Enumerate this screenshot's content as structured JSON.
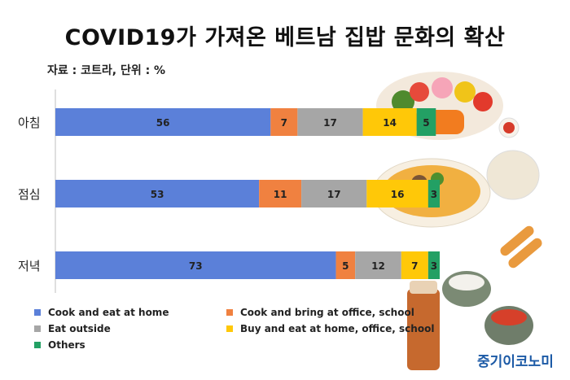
{
  "title": "COVID19가 가져온 베트남 집밥 문화의 확산",
  "source": "자료 : 코트라, 단위 : %",
  "logo": "중기이코노미",
  "chart_data": {
    "type": "bar",
    "stacked": true,
    "orientation": "horizontal",
    "categories": [
      "아침",
      "점심",
      "저녁"
    ],
    "series": [
      {
        "name": "Cook and eat at home",
        "color": "#5b80d9",
        "values": [
          56,
          53,
          73
        ]
      },
      {
        "name": "Cook and bring at office, school",
        "color": "#f08140",
        "values": [
          7,
          11,
          5
        ]
      },
      {
        "name": "Eat outside",
        "color": "#a6a6a6",
        "values": [
          17,
          17,
          12
        ]
      },
      {
        "name": "Buy and eat at home, office, school",
        "color": "#ffc808",
        "values": [
          14,
          16,
          7
        ]
      },
      {
        "name": "Others",
        "color": "#23a064",
        "values": [
          5,
          3,
          3
        ]
      }
    ],
    "xlim": [
      0,
      100
    ],
    "grid": false,
    "legend_position": "bottom"
  }
}
